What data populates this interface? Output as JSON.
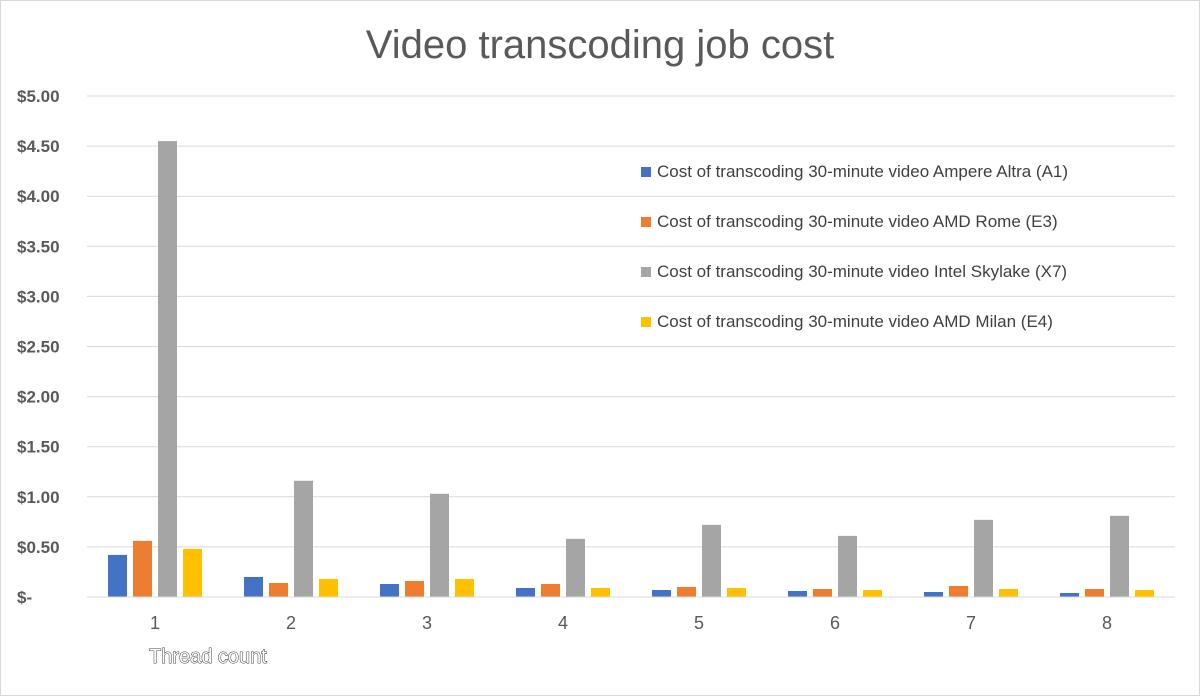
{
  "chart_data": {
    "type": "bar",
    "title": "Video transcoding job cost",
    "xlabel": "Thread count",
    "ylabel": "",
    "ylim": [
      0,
      5
    ],
    "categories": [
      "1",
      "2",
      "3",
      "4",
      "5",
      "6",
      "7",
      "8"
    ],
    "y_tick_labels": [
      "$-",
      "$0.50",
      "$1.00",
      "$1.50",
      "$2.00",
      "$2.50",
      "$3.00",
      "$3.50",
      "$4.00",
      "$4.50",
      "$5.00"
    ],
    "y_tick_values": [
      0,
      0.5,
      1.0,
      1.5,
      2.0,
      2.5,
      3.0,
      3.5,
      4.0,
      4.5,
      5.0
    ],
    "grid": true,
    "legend_position": "right",
    "series": [
      {
        "name": "Cost of transcoding 30-minute video Ampere Altra (A1)",
        "color": "#4472c4",
        "values": [
          0.42,
          0.2,
          0.13,
          0.09,
          0.07,
          0.06,
          0.05,
          0.04
        ]
      },
      {
        "name": "Cost of transcoding 30-minute video AMD Rome (E3)",
        "color": "#ed7d31",
        "values": [
          0.56,
          0.14,
          0.16,
          0.13,
          0.1,
          0.08,
          0.11,
          0.08
        ]
      },
      {
        "name": "Cost of transcoding 30-minute video Intel Skylake (X7)",
        "color": "#a5a5a5",
        "values": [
          4.55,
          1.16,
          1.03,
          0.58,
          0.72,
          0.61,
          0.77,
          0.81
        ]
      },
      {
        "name": "Cost of transcoding 30-minute video AMD Milan (E4)",
        "color": "#ffc000",
        "values": [
          0.48,
          0.18,
          0.18,
          0.09,
          0.09,
          0.07,
          0.08,
          0.07
        ]
      }
    ]
  }
}
